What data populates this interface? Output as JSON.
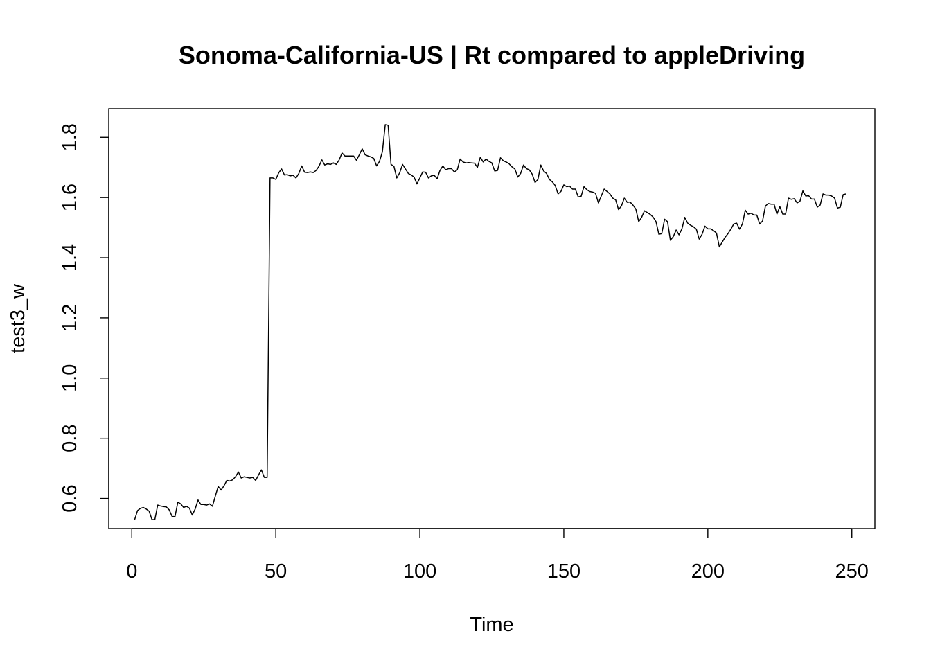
{
  "chart_data": {
    "type": "line",
    "title": "Sonoma-California-US | Rt compared to appleDriving",
    "xlabel": "Time",
    "ylabel": "test3_w",
    "xlim": [
      -8,
      258
    ],
    "ylim": [
      0.5,
      1.895
    ],
    "x_ticks": [
      0,
      50,
      100,
      150,
      200,
      250
    ],
    "x_tick_labels": [
      "0",
      "50",
      "100",
      "150",
      "200",
      "250"
    ],
    "y_ticks": [
      0.6,
      0.8,
      1.0,
      1.2,
      1.4,
      1.6,
      1.8
    ],
    "y_tick_labels": [
      "0.6",
      "0.8",
      "1.0",
      "1.2",
      "1.4",
      "1.6",
      "1.8"
    ],
    "grid": false,
    "series": [
      {
        "color": "#000000",
        "x_start": 1,
        "values": [
          0.53,
          0.56,
          0.567,
          0.57,
          0.565,
          0.558,
          0.53,
          0.53,
          0.578,
          0.575,
          0.573,
          0.572,
          0.562,
          0.54,
          0.54,
          0.588,
          0.582,
          0.57,
          0.574,
          0.568,
          0.545,
          0.565,
          0.595,
          0.58,
          0.58,
          0.578,
          0.582,
          0.574,
          0.608,
          0.64,
          0.628,
          0.642,
          0.66,
          0.658,
          0.662,
          0.672,
          0.688,
          0.668,
          0.672,
          0.67,
          0.668,
          0.67,
          0.66,
          0.678,
          0.695,
          0.67,
          0.67,
          1.665,
          1.665,
          1.66,
          1.682,
          1.695,
          1.675,
          1.676,
          1.672,
          1.674,
          1.665,
          1.68,
          1.705,
          1.684,
          1.683,
          1.685,
          1.683,
          1.69,
          1.704,
          1.725,
          1.708,
          1.712,
          1.71,
          1.715,
          1.71,
          1.725,
          1.748,
          1.738,
          1.738,
          1.738,
          1.738,
          1.724,
          1.742,
          1.762,
          1.742,
          1.738,
          1.735,
          1.73,
          1.705,
          1.72,
          1.752,
          1.842,
          1.84,
          1.71,
          1.704,
          1.665,
          1.682,
          1.71,
          1.695,
          1.68,
          1.675,
          1.668,
          1.645,
          1.665,
          1.685,
          1.684,
          1.665,
          1.672,
          1.674,
          1.662,
          1.69,
          1.705,
          1.692,
          1.696,
          1.696,
          1.685,
          1.692,
          1.728,
          1.718,
          1.715,
          1.716,
          1.715,
          1.714,
          1.7,
          1.734,
          1.718,
          1.728,
          1.72,
          1.715,
          1.688,
          1.69,
          1.732,
          1.722,
          1.718,
          1.712,
          1.702,
          1.695,
          1.668,
          1.68,
          1.708,
          1.696,
          1.692,
          1.678,
          1.65,
          1.66,
          1.708,
          1.688,
          1.68,
          1.66,
          1.652,
          1.64,
          1.612,
          1.62,
          1.642,
          1.636,
          1.638,
          1.628,
          1.628,
          1.602,
          1.604,
          1.636,
          1.626,
          1.62,
          1.618,
          1.614,
          1.582,
          1.605,
          1.628,
          1.62,
          1.612,
          1.598,
          1.592,
          1.56,
          1.572,
          1.598,
          1.584,
          1.585,
          1.575,
          1.562,
          1.52,
          1.534,
          1.556,
          1.55,
          1.544,
          1.535,
          1.52,
          1.478,
          1.48,
          1.528,
          1.52,
          1.458,
          1.47,
          1.492,
          1.476,
          1.496,
          1.534,
          1.515,
          1.508,
          1.503,
          1.495,
          1.462,
          1.478,
          1.505,
          1.496,
          1.496,
          1.49,
          1.482,
          1.436,
          1.452,
          1.468,
          1.48,
          1.495,
          1.512,
          1.515,
          1.495,
          1.512,
          1.558,
          1.545,
          1.548,
          1.542,
          1.542,
          1.512,
          1.522,
          1.572,
          1.58,
          1.578,
          1.578,
          1.545,
          1.57,
          1.545,
          1.545,
          1.598,
          1.594,
          1.596,
          1.582,
          1.588,
          1.622,
          1.605,
          1.606,
          1.595,
          1.595,
          1.568,
          1.575,
          1.612,
          1.608,
          1.608,
          1.605,
          1.598,
          1.565,
          1.568,
          1.61,
          1.612
        ]
      }
    ]
  }
}
